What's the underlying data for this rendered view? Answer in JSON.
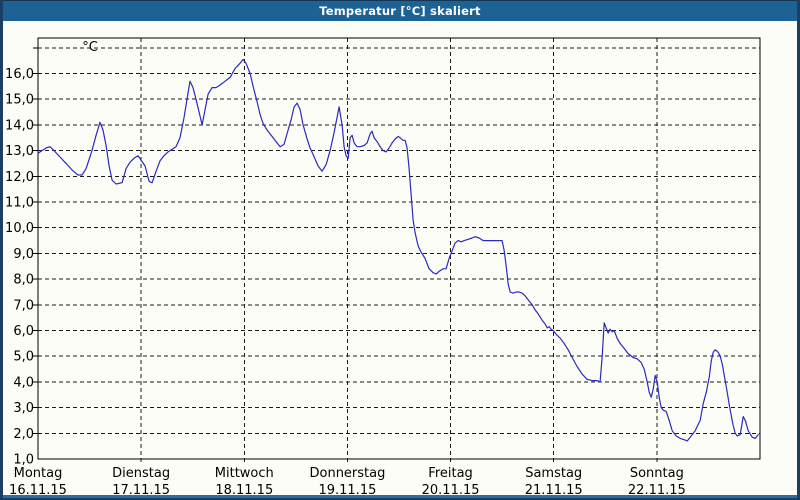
{
  "window": {
    "title": "Temperatur [°C] skaliert"
  },
  "colors": {
    "titlebar_bg": "#1D6294",
    "window_border": "#1C3E63",
    "bottom_separator": "#2A6CA5",
    "plot_background": "#FDFDF7",
    "grid_color": "#1A1A1A",
    "line_color": "#2A2ABF",
    "label_color": "#000000"
  },
  "chart_data": {
    "type": "line",
    "title": "Temperatur [°C] skaliert",
    "ylabel": "°C",
    "unit_label": "°C",
    "grid": "dashed",
    "legend": "none",
    "x_axis": {
      "range_days": [
        0,
        7
      ],
      "ticks": [
        {
          "t": 0,
          "weekday": "Montag",
          "date": "16.11.15"
        },
        {
          "t": 1,
          "weekday": "Dienstag",
          "date": "17.11.15"
        },
        {
          "t": 2,
          "weekday": "Mittwoch",
          "date": "18.11.15"
        },
        {
          "t": 3,
          "weekday": "Donnerstag",
          "date": "19.11.15"
        },
        {
          "t": 4,
          "weekday": "Freitag",
          "date": "20.11.15"
        },
        {
          "t": 5,
          "weekday": "Samstag",
          "date": "21.11.15"
        },
        {
          "t": 6,
          "weekday": "Sonntag",
          "date": "22.11.15"
        }
      ],
      "gridlines_at": [
        1,
        2,
        3,
        4,
        5,
        6
      ]
    },
    "y_axis": {
      "min": 1.0,
      "max": 17.0,
      "gridlines_at": [
        2,
        3,
        4,
        5,
        6,
        7,
        8,
        9,
        10,
        11,
        12,
        13,
        14,
        15,
        16,
        17
      ],
      "labeled_ticks": [
        {
          "value": 16,
          "label": "16,0"
        },
        {
          "value": 15,
          "label": "15,0"
        },
        {
          "value": 14,
          "label": "14,0"
        },
        {
          "value": 13,
          "label": "13,0"
        },
        {
          "value": 12,
          "label": "12,0"
        },
        {
          "value": 11,
          "label": "11,0"
        },
        {
          "value": 10,
          "label": "10,0"
        },
        {
          "value": 9,
          "label": "9,0"
        },
        {
          "value": 8,
          "label": "8,0"
        },
        {
          "value": 7,
          "label": "7,0"
        },
        {
          "value": 6,
          "label": "6,0"
        },
        {
          "value": 5,
          "label": "5,0"
        },
        {
          "value": 4,
          "label": "4,0"
        },
        {
          "value": 3,
          "label": "3,0"
        },
        {
          "value": 2,
          "label": "2,0"
        },
        {
          "value": 1,
          "label": "1,0"
        }
      ]
    },
    "series": [
      {
        "name": "Temperatur",
        "color": "#2A2ABF",
        "points": [
          [
            0.0,
            12.9
          ],
          [
            0.039,
            13.0
          ],
          [
            0.078,
            13.1
          ],
          [
            0.116,
            13.15
          ],
          [
            0.155,
            13.0
          ],
          [
            0.213,
            12.75
          ],
          [
            0.272,
            12.5
          ],
          [
            0.33,
            12.25
          ],
          [
            0.388,
            12.05
          ],
          [
            0.427,
            12.05
          ],
          [
            0.466,
            12.3
          ],
          [
            0.524,
            13.0
          ],
          [
            0.563,
            13.6
          ],
          [
            0.601,
            14.1
          ],
          [
            0.63,
            13.8
          ],
          [
            0.66,
            13.2
          ],
          [
            0.689,
            12.4
          ],
          [
            0.718,
            11.85
          ],
          [
            0.757,
            11.7
          ],
          [
            0.815,
            11.75
          ],
          [
            0.854,
            12.3
          ],
          [
            0.892,
            12.55
          ],
          [
            0.931,
            12.7
          ],
          [
            0.97,
            12.8
          ],
          [
            1.038,
            12.4
          ],
          [
            1.077,
            11.8
          ],
          [
            1.106,
            11.75
          ],
          [
            1.145,
            12.2
          ],
          [
            1.183,
            12.6
          ],
          [
            1.222,
            12.8
          ],
          [
            1.261,
            12.95
          ],
          [
            1.3,
            13.05
          ],
          [
            1.338,
            13.15
          ],
          [
            1.377,
            13.5
          ],
          [
            1.416,
            14.3
          ],
          [
            1.445,
            15.0
          ],
          [
            1.474,
            15.7
          ],
          [
            1.503,
            15.45
          ],
          [
            1.532,
            15.0
          ],
          [
            1.562,
            14.5
          ],
          [
            1.591,
            14.0
          ],
          [
            1.62,
            14.6
          ],
          [
            1.649,
            15.2
          ],
          [
            1.688,
            15.45
          ],
          [
            1.726,
            15.45
          ],
          [
            1.765,
            15.55
          ],
          [
            1.814,
            15.7
          ],
          [
            1.862,
            15.85
          ],
          [
            1.911,
            16.2
          ],
          [
            1.959,
            16.4
          ],
          [
            1.988,
            16.55
          ],
          [
            2.017,
            16.4
          ],
          [
            2.056,
            16.0
          ],
          [
            2.085,
            15.5
          ],
          [
            2.124,
            14.9
          ],
          [
            2.153,
            14.4
          ],
          [
            2.182,
            14.05
          ],
          [
            2.221,
            13.8
          ],
          [
            2.27,
            13.55
          ],
          [
            2.308,
            13.35
          ],
          [
            2.347,
            13.15
          ],
          [
            2.386,
            13.25
          ],
          [
            2.425,
            13.8
          ],
          [
            2.454,
            14.2
          ],
          [
            2.483,
            14.7
          ],
          [
            2.512,
            14.85
          ],
          [
            2.541,
            14.6
          ],
          [
            2.57,
            14.0
          ],
          [
            2.609,
            13.45
          ],
          [
            2.638,
            13.1
          ],
          [
            2.667,
            12.85
          ],
          [
            2.716,
            12.4
          ],
          [
            2.754,
            12.2
          ],
          [
            2.793,
            12.45
          ],
          [
            2.832,
            13.0
          ],
          [
            2.871,
            13.7
          ],
          [
            2.9,
            14.3
          ],
          [
            2.919,
            14.7
          ],
          [
            2.948,
            14.0
          ],
          [
            2.968,
            13.15
          ],
          [
            2.987,
            12.8
          ],
          [
            3.007,
            12.7
          ],
          [
            3.026,
            13.5
          ],
          [
            3.045,
            13.6
          ],
          [
            3.065,
            13.3
          ],
          [
            3.094,
            13.15
          ],
          [
            3.123,
            13.15
          ],
          [
            3.162,
            13.2
          ],
          [
            3.191,
            13.3
          ],
          [
            3.22,
            13.65
          ],
          [
            3.239,
            13.75
          ],
          [
            3.259,
            13.5
          ],
          [
            3.288,
            13.35
          ],
          [
            3.317,
            13.15
          ],
          [
            3.346,
            13.0
          ],
          [
            3.375,
            12.95
          ],
          [
            3.404,
            13.1
          ],
          [
            3.433,
            13.3
          ],
          [
            3.462,
            13.45
          ],
          [
            3.491,
            13.55
          ],
          [
            3.511,
            13.5
          ],
          [
            3.54,
            13.4
          ],
          [
            3.559,
            13.4
          ],
          [
            3.579,
            13.1
          ],
          [
            3.598,
            12.3
          ],
          [
            3.617,
            11.3
          ],
          [
            3.637,
            10.3
          ],
          [
            3.656,
            9.8
          ],
          [
            3.685,
            9.3
          ],
          [
            3.714,
            9.05
          ],
          [
            3.753,
            8.8
          ],
          [
            3.792,
            8.4
          ],
          [
            3.831,
            8.25
          ],
          [
            3.86,
            8.2
          ],
          [
            3.889,
            8.3
          ],
          [
            3.928,
            8.4
          ],
          [
            3.957,
            8.4
          ],
          [
            3.986,
            8.8
          ],
          [
            4.015,
            9.1
          ],
          [
            4.044,
            9.4
          ],
          [
            4.073,
            9.5
          ],
          [
            4.103,
            9.45
          ],
          [
            4.132,
            9.5
          ],
          [
            4.171,
            9.55
          ],
          [
            4.209,
            9.6
          ],
          [
            4.238,
            9.65
          ],
          [
            4.277,
            9.6
          ],
          [
            4.316,
            9.5
          ],
          [
            4.365,
            9.5
          ],
          [
            4.413,
            9.5
          ],
          [
            4.462,
            9.5
          ],
          [
            4.5,
            9.5
          ],
          [
            4.52,
            9.1
          ],
          [
            4.539,
            8.5
          ],
          [
            4.559,
            7.8
          ],
          [
            4.578,
            7.5
          ],
          [
            4.607,
            7.45
          ],
          [
            4.636,
            7.5
          ],
          [
            4.665,
            7.5
          ],
          [
            4.694,
            7.45
          ],
          [
            4.723,
            7.35
          ],
          [
            4.752,
            7.2
          ],
          [
            4.791,
            7.0
          ],
          [
            4.82,
            6.8
          ],
          [
            4.849,
            6.65
          ],
          [
            4.888,
            6.4
          ],
          [
            4.917,
            6.25
          ],
          [
            4.937,
            6.1
          ],
          [
            4.956,
            6.15
          ],
          [
            4.975,
            6.05
          ],
          [
            4.995,
            6.0
          ],
          [
            5.024,
            5.85
          ],
          [
            5.063,
            5.7
          ],
          [
            5.101,
            5.5
          ],
          [
            5.14,
            5.25
          ],
          [
            5.179,
            4.95
          ],
          [
            5.227,
            4.6
          ],
          [
            5.276,
            4.3
          ],
          [
            5.324,
            4.1
          ],
          [
            5.373,
            4.05
          ],
          [
            5.421,
            4.05
          ],
          [
            5.45,
            4.0
          ],
          [
            5.47,
            5.0
          ],
          [
            5.489,
            6.3
          ],
          [
            5.508,
            6.1
          ],
          [
            5.528,
            5.9
          ],
          [
            5.547,
            6.05
          ],
          [
            5.567,
            5.95
          ],
          [
            5.586,
            6.0
          ],
          [
            5.615,
            5.7
          ],
          [
            5.644,
            5.5
          ],
          [
            5.683,
            5.3
          ],
          [
            5.722,
            5.1
          ],
          [
            5.77,
            4.95
          ],
          [
            5.809,
            4.9
          ],
          [
            5.848,
            4.75
          ],
          [
            5.877,
            4.5
          ],
          [
            5.906,
            4.0
          ],
          [
            5.926,
            3.6
          ],
          [
            5.945,
            3.4
          ],
          [
            5.964,
            3.7
          ],
          [
            5.984,
            4.25
          ],
          [
            6.003,
            4.0
          ],
          [
            6.023,
            3.4
          ],
          [
            6.042,
            3.0
          ],
          [
            6.062,
            2.9
          ],
          [
            6.091,
            2.85
          ],
          [
            6.12,
            2.5
          ],
          [
            6.149,
            2.1
          ],
          [
            6.187,
            1.9
          ],
          [
            6.226,
            1.8
          ],
          [
            6.265,
            1.75
          ],
          [
            6.294,
            1.7
          ],
          [
            6.333,
            1.9
          ],
          [
            6.372,
            2.1
          ],
          [
            6.401,
            2.35
          ],
          [
            6.42,
            2.5
          ],
          [
            6.449,
            3.15
          ],
          [
            6.479,
            3.6
          ],
          [
            6.508,
            4.2
          ],
          [
            6.527,
            4.8
          ],
          [
            6.546,
            5.15
          ],
          [
            6.566,
            5.25
          ],
          [
            6.595,
            5.15
          ],
          [
            6.614,
            5.0
          ],
          [
            6.634,
            4.7
          ],
          [
            6.663,
            4.05
          ],
          [
            6.682,
            3.6
          ],
          [
            6.702,
            3.1
          ],
          [
            6.721,
            2.7
          ],
          [
            6.74,
            2.3
          ],
          [
            6.76,
            2.0
          ],
          [
            6.779,
            1.9
          ],
          [
            6.808,
            1.95
          ],
          [
            6.837,
            2.65
          ],
          [
            6.857,
            2.5
          ],
          [
            6.886,
            2.1
          ],
          [
            6.924,
            1.85
          ],
          [
            6.954,
            1.8
          ],
          [
            6.983,
            1.95
          ]
        ]
      }
    ]
  }
}
